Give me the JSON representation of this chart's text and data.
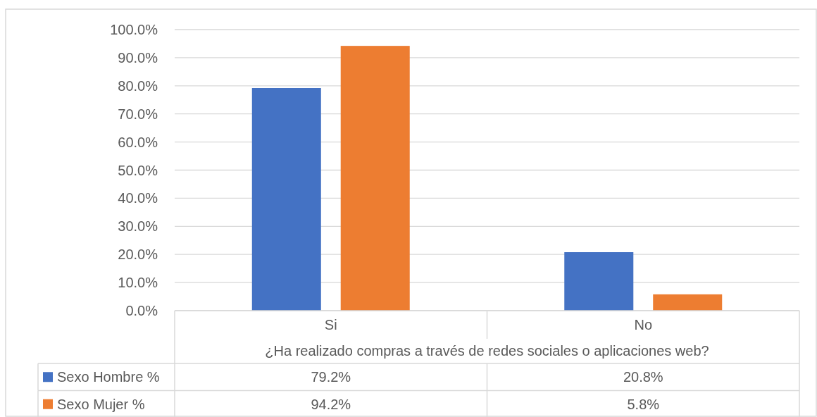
{
  "chart_data": {
    "type": "bar",
    "xlabel": "¿Ha realizado compras a través de redes sociales o aplicaciones web?",
    "categories": [
      "Si",
      "No"
    ],
    "series": [
      {
        "name": "Sexo Hombre %",
        "color": "#4472c4",
        "values": [
          79.2,
          20.8
        ],
        "value_labels": [
          "79.2%",
          "20.8%"
        ]
      },
      {
        "name": "Sexo Mujer %",
        "color": "#ed7d31",
        "values": [
          94.2,
          5.8
        ],
        "value_labels": [
          "94.2%",
          "5.8%"
        ]
      }
    ],
    "ylim": [
      0,
      100
    ],
    "yticks": [
      {
        "value": 0,
        "label": "0.0%"
      },
      {
        "value": 10,
        "label": "10.0%"
      },
      {
        "value": 20,
        "label": "20.0%"
      },
      {
        "value": 30,
        "label": "30.0%"
      },
      {
        "value": 40,
        "label": "40.0%"
      },
      {
        "value": 50,
        "label": "50.0%"
      },
      {
        "value": 60,
        "label": "60.0%"
      },
      {
        "value": 70,
        "label": "70.0%"
      },
      {
        "value": 80,
        "label": "80.0%"
      },
      {
        "value": 90,
        "label": "90.0%"
      },
      {
        "value": 100,
        "label": "100.0%"
      }
    ],
    "grid": "y",
    "legend": "bottom"
  }
}
